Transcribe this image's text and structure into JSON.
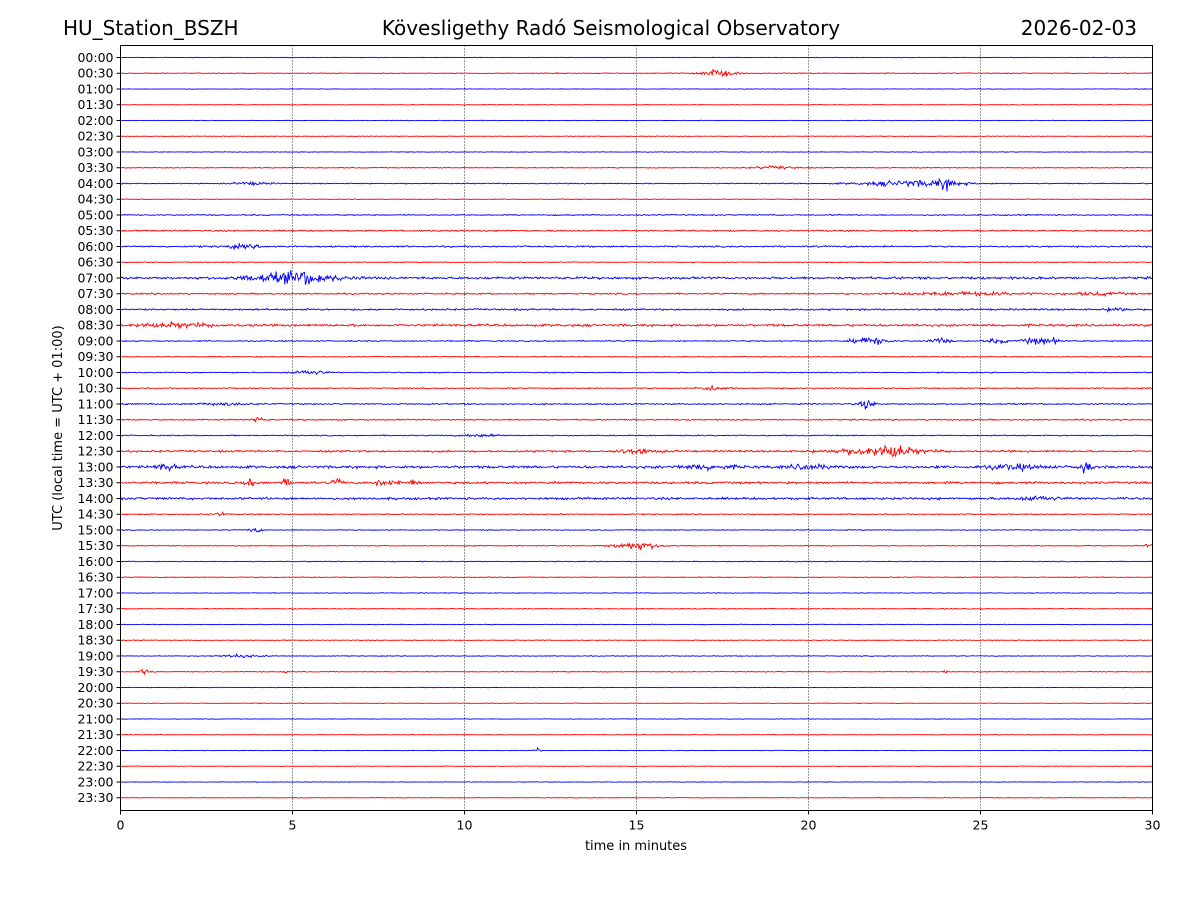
{
  "header": {
    "station": "HU_Station_BSZH",
    "observatory": "Kövesligethy Radó Seismological Observatory",
    "date": "2026-02-03"
  },
  "chart_data": {
    "type": "line",
    "title": "Kövesligethy Radó Seismological Observatory",
    "xlabel": "time in minutes",
    "ylabel": "UTC (local time = UTC + 01:00)",
    "xlim": [
      0,
      30
    ],
    "xticks": [
      "0",
      "5",
      "10",
      "15",
      "20",
      "25",
      "30"
    ],
    "xtick_values": [
      0,
      5,
      10,
      15,
      20,
      25,
      30
    ],
    "vertical_gridlines_at": [
      5,
      10,
      15,
      20,
      25
    ],
    "colors": {
      "even_row": "#0000ff",
      "odd_row": "#ff0000"
    },
    "series": [
      {
        "name": "00:00",
        "color": "#0000ff",
        "base": 0.4,
        "events": []
      },
      {
        "name": "00:30",
        "color": "#ff0000",
        "base": 0.6,
        "events": [
          [
            17.3,
            0.5,
            5
          ]
        ]
      },
      {
        "name": "01:00",
        "color": "#0000ff",
        "base": 0.4,
        "events": []
      },
      {
        "name": "01:30",
        "color": "#ff0000",
        "base": 0.4,
        "events": []
      },
      {
        "name": "02:00",
        "color": "#0000ff",
        "base": 0.4,
        "events": []
      },
      {
        "name": "02:30",
        "color": "#ff0000",
        "base": 0.4,
        "events": []
      },
      {
        "name": "03:00",
        "color": "#0000ff",
        "base": 0.4,
        "events": []
      },
      {
        "name": "03:30",
        "color": "#ff0000",
        "base": 0.6,
        "events": [
          [
            19.0,
            0.6,
            2
          ]
        ]
      },
      {
        "name": "04:00",
        "color": "#0000ff",
        "base": 0.7,
        "events": [
          [
            3.8,
            0.5,
            2
          ],
          [
            23.0,
            1.4,
            4
          ],
          [
            24.0,
            0.3,
            6
          ]
        ]
      },
      {
        "name": "04:30",
        "color": "#ff0000",
        "base": 0.5,
        "events": []
      },
      {
        "name": "05:00",
        "color": "#0000ff",
        "base": 0.8,
        "events": []
      },
      {
        "name": "05:30",
        "color": "#ff0000",
        "base": 1.0,
        "events": []
      },
      {
        "name": "06:00",
        "color": "#0000ff",
        "base": 1.1,
        "events": [
          [
            3.5,
            0.6,
            2
          ]
        ]
      },
      {
        "name": "06:30",
        "color": "#ff0000",
        "base": 0.6,
        "events": []
      },
      {
        "name": "07:00",
        "color": "#0000ff",
        "base": 1.6,
        "events": [
          [
            5.0,
            1.3,
            7
          ],
          [
            5.4,
            0.3,
            4
          ]
        ]
      },
      {
        "name": "07:30",
        "color": "#ff0000",
        "base": 1.0,
        "events": [
          [
            24.5,
            2.0,
            2
          ],
          [
            28.5,
            0.8,
            2
          ]
        ]
      },
      {
        "name": "08:00",
        "color": "#0000ff",
        "base": 1.2,
        "events": [
          [
            29.0,
            0.3,
            3
          ]
        ]
      },
      {
        "name": "08:30",
        "color": "#ff0000",
        "base": 1.6,
        "events": [
          [
            1.5,
            1.2,
            2.5
          ]
        ]
      },
      {
        "name": "09:00",
        "color": "#0000ff",
        "base": 0.8,
        "events": [
          [
            21.5,
            0.3,
            4
          ],
          [
            22.0,
            0.3,
            5
          ],
          [
            23.8,
            0.3,
            4
          ],
          [
            25.5,
            0.3,
            3
          ],
          [
            26.5,
            0.3,
            4
          ],
          [
            27.0,
            0.3,
            4
          ]
        ]
      },
      {
        "name": "09:30",
        "color": "#ff0000",
        "base": 0.6,
        "events": []
      },
      {
        "name": "10:00",
        "color": "#0000ff",
        "base": 0.7,
        "events": [
          [
            5.5,
            0.5,
            3
          ]
        ]
      },
      {
        "name": "10:30",
        "color": "#ff0000",
        "base": 0.8,
        "events": [
          [
            17.2,
            0.4,
            3
          ]
        ]
      },
      {
        "name": "11:00",
        "color": "#0000ff",
        "base": 0.9,
        "events": [
          [
            21.7,
            0.2,
            7
          ],
          [
            3.0,
            0.8,
            1.5
          ]
        ]
      },
      {
        "name": "11:30",
        "color": "#ff0000",
        "base": 0.9,
        "events": [
          [
            3.95,
            0.15,
            6
          ]
        ]
      },
      {
        "name": "12:00",
        "color": "#0000ff",
        "base": 0.8,
        "events": [
          [
            10.5,
            0.5,
            2
          ]
        ]
      },
      {
        "name": "12:30",
        "color": "#ff0000",
        "base": 1.3,
        "events": [
          [
            15.0,
            0.6,
            3
          ],
          [
            22.0,
            1.2,
            6
          ],
          [
            22.5,
            0.3,
            5
          ]
        ]
      },
      {
        "name": "13:00",
        "color": "#0000ff",
        "base": 1.8,
        "events": [
          [
            1.3,
            0.3,
            4
          ],
          [
            17.0,
            0.8,
            3
          ],
          [
            20.0,
            0.6,
            3
          ],
          [
            26.0,
            0.8,
            3
          ],
          [
            28.0,
            0.2,
            7
          ]
        ]
      },
      {
        "name": "13:30",
        "color": "#ff0000",
        "base": 1.5,
        "events": [
          [
            3.8,
            0.15,
            5
          ],
          [
            4.8,
            0.15,
            5
          ],
          [
            6.3,
            0.15,
            5
          ],
          [
            7.5,
            0.15,
            4
          ],
          [
            8.0,
            0.15,
            4
          ],
          [
            8.5,
            0.15,
            4
          ]
        ]
      },
      {
        "name": "14:00",
        "color": "#0000ff",
        "base": 1.6,
        "events": [
          [
            26.7,
            0.6,
            2.5
          ]
        ]
      },
      {
        "name": "14:30",
        "color": "#ff0000",
        "base": 0.8,
        "events": [
          [
            2.9,
            0.1,
            5
          ]
        ]
      },
      {
        "name": "15:00",
        "color": "#0000ff",
        "base": 0.6,
        "events": [
          [
            3.9,
            0.2,
            3
          ]
        ]
      },
      {
        "name": "15:30",
        "color": "#ff0000",
        "base": 0.6,
        "events": [
          [
            15.0,
            0.7,
            5
          ],
          [
            29.9,
            0.1,
            4
          ]
        ]
      },
      {
        "name": "16:00",
        "color": "#0000ff",
        "base": 0.6,
        "events": []
      },
      {
        "name": "16:30",
        "color": "#ff0000",
        "base": 0.6,
        "events": []
      },
      {
        "name": "17:00",
        "color": "#0000ff",
        "base": 0.5,
        "events": []
      },
      {
        "name": "17:30",
        "color": "#ff0000",
        "base": 0.6,
        "events": []
      },
      {
        "name": "18:00",
        "color": "#0000ff",
        "base": 0.5,
        "events": []
      },
      {
        "name": "18:30",
        "color": "#ff0000",
        "base": 0.5,
        "events": []
      },
      {
        "name": "19:00",
        "color": "#0000ff",
        "base": 0.5,
        "events": [
          [
            3.5,
            0.6,
            2
          ]
        ]
      },
      {
        "name": "19:30",
        "color": "#ff0000",
        "base": 0.5,
        "events": [
          [
            0.7,
            0.2,
            3
          ],
          [
            4.8,
            0.1,
            3
          ],
          [
            23.9,
            0.15,
            2
          ]
        ]
      },
      {
        "name": "20:00",
        "color": "#0000ff",
        "base": 0.4,
        "events": []
      },
      {
        "name": "20:30",
        "color": "#ff0000",
        "base": 0.4,
        "events": []
      },
      {
        "name": "21:00",
        "color": "#0000ff",
        "base": 0.4,
        "events": []
      },
      {
        "name": "21:30",
        "color": "#ff0000",
        "base": 0.4,
        "events": []
      },
      {
        "name": "22:00",
        "color": "#0000ff",
        "base": 0.4,
        "events": [
          [
            12.1,
            0.1,
            4
          ]
        ]
      },
      {
        "name": "22:30",
        "color": "#ff0000",
        "base": 0.4,
        "events": []
      },
      {
        "name": "23:00",
        "color": "#0000ff",
        "base": 0.4,
        "events": []
      },
      {
        "name": "23:30",
        "color": "#ff0000",
        "base": 0.4,
        "events": []
      }
    ]
  }
}
